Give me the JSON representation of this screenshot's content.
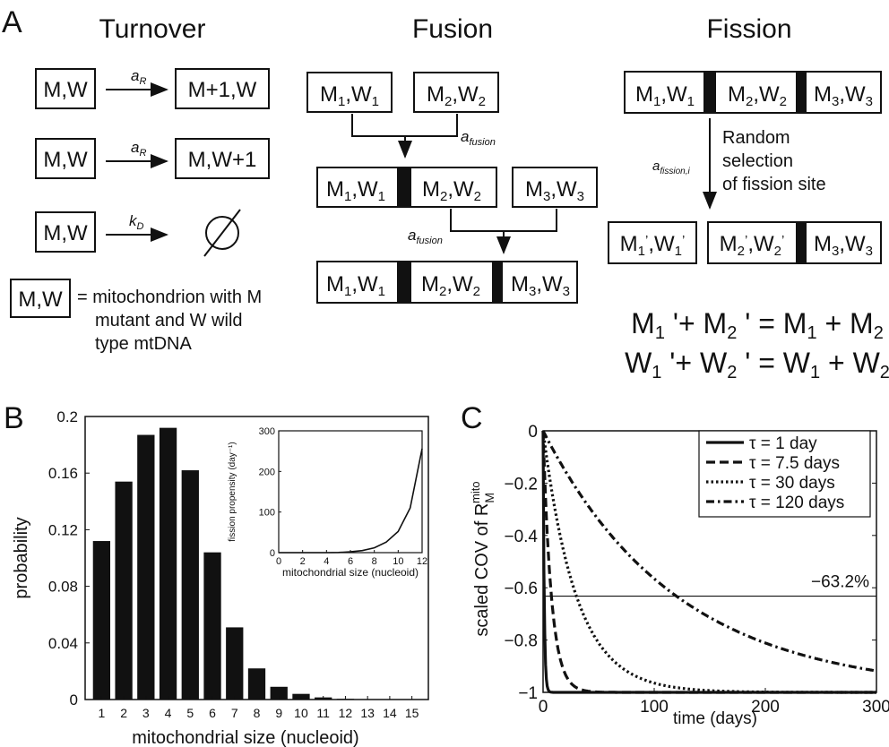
{
  "panel_a": {
    "label": "A",
    "turnover": {
      "title": "Turnover",
      "rows": [
        {
          "from": "M,W",
          "rate": "a",
          "rate_sub": "R",
          "to": "M+1,W"
        },
        {
          "from": "M,W",
          "rate": "a",
          "rate_sub": "R",
          "to": "M,W+1"
        },
        {
          "from": "M,W",
          "rate": "k",
          "rate_sub": "D",
          "to": "∅"
        }
      ],
      "legend_box": "M,W",
      "legend_text": [
        "= mitochondrion with M",
        "mutant and W wild",
        "type mtDNA"
      ]
    },
    "fusion": {
      "title": "Fusion",
      "rate": "a",
      "rate_sub": "fusion",
      "segments": [
        {
          "m": "M",
          "mi": "1",
          "w": "W",
          "wi": "1"
        },
        {
          "m": "M",
          "mi": "2",
          "w": "W",
          "wi": "2"
        },
        {
          "m": "M",
          "mi": "3",
          "w": "W",
          "wi": "3"
        }
      ]
    },
    "fission": {
      "title": "Fission",
      "rate": "a",
      "rate_sub": "fission,i",
      "note": [
        "Random",
        "selection",
        "of fission site"
      ],
      "top": [
        {
          "m": "M",
          "mi": "1",
          "w": "W",
          "wi": "1"
        },
        {
          "m": "M",
          "mi": "2",
          "w": "W",
          "wi": "2"
        },
        {
          "m": "M",
          "mi": "3",
          "w": "W",
          "wi": "3"
        }
      ],
      "bottom": [
        {
          "m": "M",
          "mi": "1",
          "w": "W",
          "wi": "1",
          "prime": "’"
        },
        {
          "m": "M",
          "mi": "2",
          "w": "W",
          "wi": "2",
          "prime": "’"
        },
        {
          "m": "M",
          "mi": "3",
          "w": "W",
          "wi": "3",
          "prime": ""
        }
      ],
      "eq1": {
        "a": "M",
        "ai": "1",
        "b": "M",
        "bi": "2",
        "c": "M",
        "ci": "1",
        "d": "M",
        "di": "2"
      },
      "eq2": {
        "a": "W",
        "ai": "1",
        "b": "W",
        "bi": "2",
        "c": "W",
        "ci": "1",
        "d": "W",
        "di": "2"
      }
    }
  },
  "panel_b": {
    "label": "B",
    "chart_data": {
      "type": "bar",
      "xlabel": "mitochondrial size (nucleoid)",
      "ylabel": "probability",
      "categories": [
        "1",
        "2",
        "3",
        "4",
        "5",
        "6",
        "7",
        "8",
        "9",
        "10",
        "11",
        "12",
        "13",
        "14",
        "15"
      ],
      "values": [
        0.112,
        0.154,
        0.187,
        0.192,
        0.162,
        0.104,
        0.051,
        0.022,
        0.009,
        0.004,
        0.0015,
        0.0005,
        0.0002,
        0.0001,
        5e-05
      ],
      "ylim": [
        0,
        0.2
      ],
      "yticks": [
        "0",
        "0.04",
        "0.08",
        "0.12",
        "0.16",
        "0.2"
      ]
    },
    "inset": {
      "type": "line",
      "xlabel": "mitochondrial size (nucleoid)",
      "ylabel": "fission propensity (day⁻¹)",
      "x": [
        0,
        1,
        2,
        3,
        4,
        5,
        6,
        7,
        8,
        9,
        10,
        11,
        12
      ],
      "y": [
        0,
        0,
        0,
        0,
        0,
        0.5,
        2,
        5,
        12,
        26,
        52,
        110,
        256
      ],
      "xlim": [
        0,
        12
      ],
      "ylim": [
        0,
        300
      ],
      "xticks": [
        "0",
        "2",
        "4",
        "6",
        "8",
        "10",
        "12"
      ],
      "yticks": [
        "0",
        "100",
        "200",
        "300"
      ]
    }
  },
  "panel_c": {
    "label": "C",
    "chart_data": {
      "type": "line",
      "xlabel": "time (days)",
      "ylabel_main": "scaled COV of R",
      "ylabel_sub": "M",
      "ylabel_sup": "mito",
      "xlim": [
        0,
        300
      ],
      "ylim": [
        -1,
        0
      ],
      "xticks": [
        "0",
        "100",
        "200",
        "300"
      ],
      "yticks": [
        "0",
        "−0.2",
        "−0.4",
        "−0.6",
        "−0.8",
        "−1"
      ],
      "reference_line": {
        "y": -0.632,
        "label": "−63.2%"
      },
      "series": [
        {
          "name": "τ = 1 day",
          "tau": 1,
          "style": "solid"
        },
        {
          "name": "τ = 7.5 days",
          "tau": 7.5,
          "style": "dashed"
        },
        {
          "name": "τ = 30 days",
          "tau": 30,
          "style": "dotted"
        },
        {
          "name": "τ = 120 days",
          "tau": 120,
          "style": "dashdot"
        }
      ]
    }
  }
}
